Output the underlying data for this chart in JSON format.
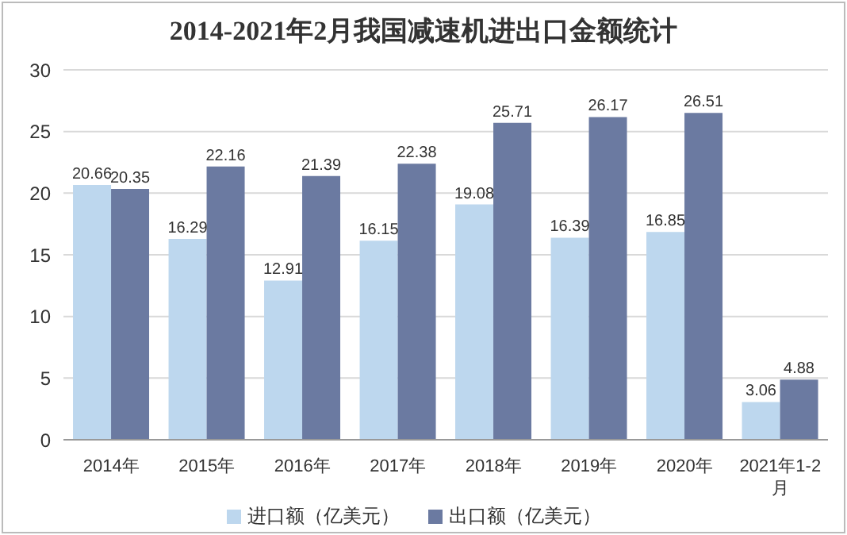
{
  "chart_data": {
    "type": "bar",
    "title": "2014-2021年2月我国减速机进出口金额统计",
    "categories": [
      "2014年",
      "2015年",
      "2016年",
      "2017年",
      "2018年",
      "2019年",
      "2020年",
      "2021年1-2月"
    ],
    "series": [
      {
        "name": "进口额（亿美元）",
        "color": "#bdd7ee",
        "values": [
          20.66,
          16.29,
          12.91,
          16.15,
          19.08,
          16.39,
          16.85,
          3.06
        ]
      },
      {
        "name": "出口额（亿美元）",
        "color": "#6b7aa1",
        "values": [
          20.35,
          22.16,
          21.39,
          22.38,
          25.71,
          26.17,
          26.51,
          4.88
        ]
      }
    ],
    "ylim": [
      0,
      30
    ],
    "yticks": [
      0,
      5,
      10,
      15,
      20,
      25,
      30
    ],
    "grid": "y",
    "legend": "bottom",
    "data_labels": true
  }
}
